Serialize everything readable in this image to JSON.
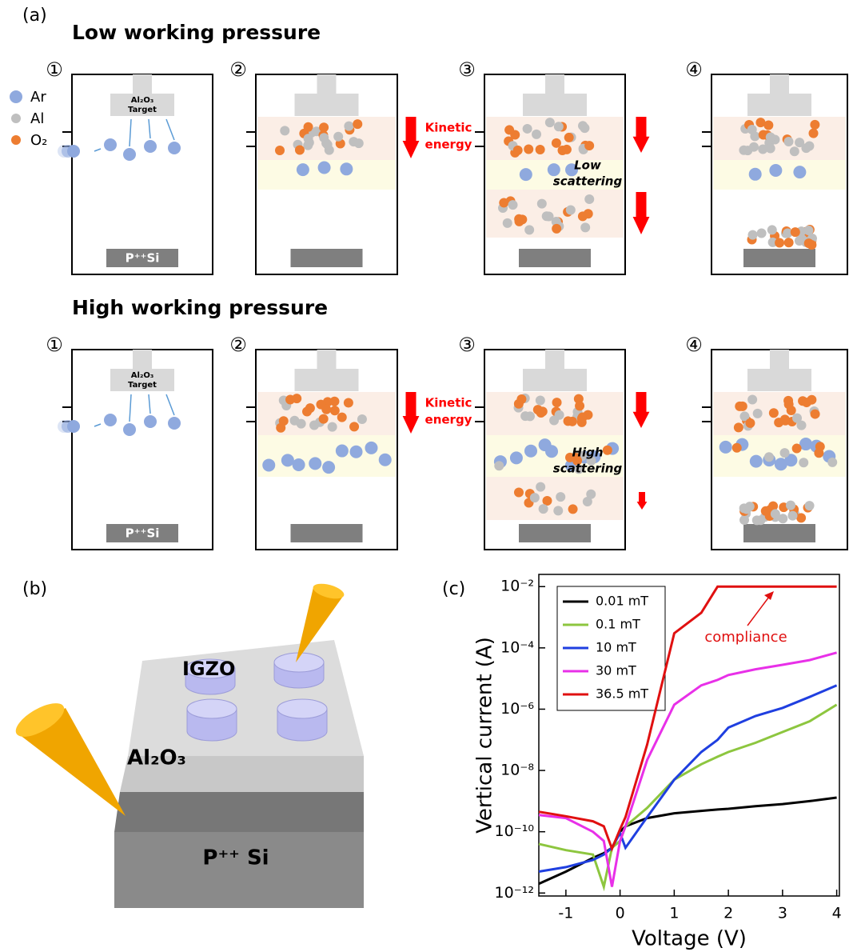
{
  "panel_labels": [
    "(a)",
    "(b)",
    "(c)"
  ],
  "diagram_a": {
    "legend": [
      "Ar",
      "Al",
      "O₂"
    ],
    "rows": [
      {
        "title": "Low working pressure",
        "steps": [
          "①",
          "②",
          "③",
          "④"
        ],
        "target": [
          "Al₂O₃",
          "Target"
        ],
        "substrate": "P⁺⁺Si",
        "kinetic": [
          "Kinetic",
          "energy"
        ],
        "scattering": [
          "Low",
          "scattering"
        ]
      },
      {
        "title": "High working pressure",
        "steps": [
          "①",
          "②",
          "③",
          "④"
        ],
        "target": [
          "Al₂O₃",
          "Target"
        ],
        "substrate": "P⁺⁺Si",
        "kinetic": [
          "Kinetic",
          "energy"
        ],
        "scattering": [
          "High",
          "scattering"
        ]
      }
    ]
  },
  "diagram_b": {
    "labels": [
      "IGZO",
      "Al₂O₃",
      "P⁺⁺ Si"
    ]
  },
  "chart_data": {
    "type": "line",
    "x_label": "Voltage (V)",
    "y_label": "Vertical current (A)",
    "log_y": true,
    "xlim": [
      -1.5,
      4.05
    ],
    "xticks": [
      -1,
      0,
      1,
      2,
      3,
      4
    ],
    "ylim": [
      8e-13,
      0.025
    ],
    "yticks": [
      {
        "value": 1e-12,
        "label": "10⁻¹²"
      },
      {
        "value": 1e-10,
        "label": "10⁻¹⁰"
      },
      {
        "value": 1e-08,
        "label": "10⁻⁸"
      },
      {
        "value": 1e-06,
        "label": "10⁻⁶"
      },
      {
        "value": 0.0001,
        "label": "10⁻⁴"
      },
      {
        "value": 0.01,
        "label": "10⁻²"
      }
    ],
    "annotation": "compliance",
    "x": [
      -1.5,
      -1,
      -0.5,
      -0.3,
      -0.15,
      0,
      0.1,
      0.5,
      1,
      1.5,
      1.8,
      2,
      2.5,
      3,
      3.5,
      4
    ],
    "series": [
      {
        "name": "0.01 mT",
        "color": "#000000",
        "values": [
          2e-12,
          5e-12,
          1.4e-11,
          2e-11,
          3e-11,
          1e-10,
          1.5e-10,
          2.8e-10,
          4e-10,
          4.8e-10,
          5.3e-10,
          5.6e-10,
          6.8e-10,
          8e-10,
          1e-09,
          1.3e-09
        ]
      },
      {
        "name": "0.1 mT",
        "color": "#8dc63f",
        "values": [
          4e-11,
          2.5e-11,
          1.8e-11,
          1.6e-12,
          3e-11,
          5e-11,
          1.5e-10,
          6e-10,
          5e-09,
          1.6e-08,
          2.8e-08,
          4e-08,
          8e-08,
          1.8e-07,
          4e-07,
          1.4e-06
        ]
      },
      {
        "name": "10 mT",
        "color": "#1f3fe0",
        "values": [
          5e-12,
          7e-12,
          1.2e-11,
          1.8e-11,
          3e-11,
          9e-11,
          3e-11,
          3e-10,
          5e-09,
          4e-08,
          1e-07,
          2.5e-07,
          6e-07,
          1.1e-06,
          2.5e-06,
          6e-06
        ]
      },
      {
        "name": "30 mT",
        "color": "#e830e8",
        "values": [
          3.5e-10,
          2.8e-10,
          1e-10,
          5e-11,
          1.6e-12,
          5e-11,
          1.5e-10,
          2.2e-08,
          1.4e-06,
          6e-06,
          9e-06,
          1.3e-05,
          2e-05,
          2.8e-05,
          4e-05,
          7e-05
        ]
      },
      {
        "name": "36.5 mT",
        "color": "#e01010",
        "values": [
          4.5e-10,
          3.2e-10,
          2.2e-10,
          1.5e-10,
          2.8e-11,
          1.2e-10,
          3e-10,
          7e-08,
          0.0003,
          0.0014,
          0.01,
          0.01,
          0.01,
          0.01,
          0.01,
          0.01
        ]
      }
    ]
  }
}
